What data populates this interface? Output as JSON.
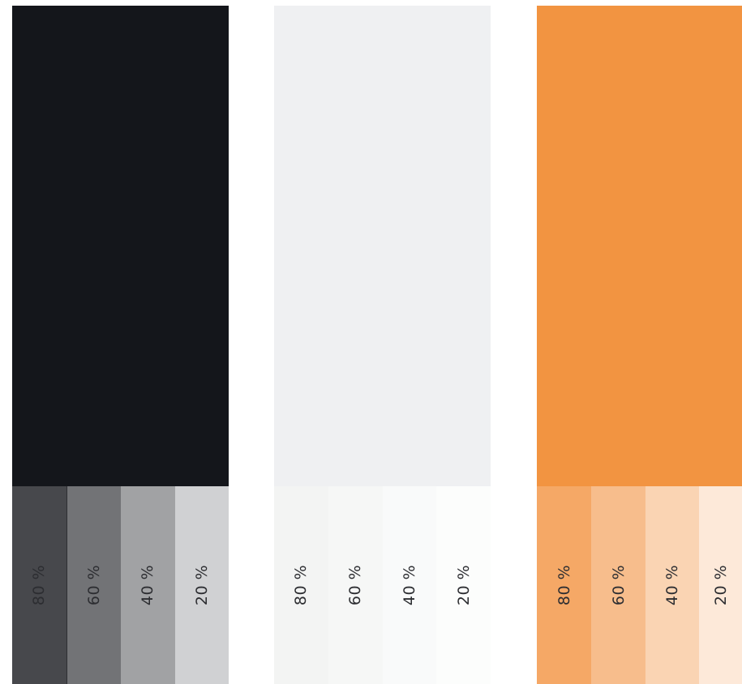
{
  "palette": [
    {
      "name": "dark",
      "color": "#14161b",
      "tints": [
        {
          "label": "80 %",
          "color": "#47484c",
          "text_color": "#2c2d31"
        },
        {
          "label": "60 %",
          "color": "#727376",
          "text_color": "#2c2d31"
        },
        {
          "label": "40 %",
          "color": "#a1a2a4",
          "text_color": "#2c2d31"
        },
        {
          "label": "20 %",
          "color": "#d0d1d3",
          "text_color": "#2c2d31"
        }
      ]
    },
    {
      "name": "light",
      "color": "#eff0f2",
      "tints": [
        {
          "label": "80 %",
          "color": "#f3f4f3",
          "text_color": "#2c2d31"
        },
        {
          "label": "60 %",
          "color": "#f6f7f6",
          "text_color": "#2c2d31"
        },
        {
          "label": "40 %",
          "color": "#f9fafa",
          "text_color": "#2c2d31"
        },
        {
          "label": "20 %",
          "color": "#fcfdfc",
          "text_color": "#2c2d31"
        }
      ]
    },
    {
      "name": "orange",
      "color": "#f29441",
      "tints": [
        {
          "label": "80 %",
          "color": "#f5a866",
          "text_color": "#2c2d31"
        },
        {
          "label": "60 %",
          "color": "#f7bd8c",
          "text_color": "#2c2d31"
        },
        {
          "label": "40 %",
          "color": "#fad4b3",
          "text_color": "#2c2d31"
        },
        {
          "label": "20 %",
          "color": "#fde9d9",
          "text_color": "#2c2d31"
        }
      ]
    }
  ]
}
